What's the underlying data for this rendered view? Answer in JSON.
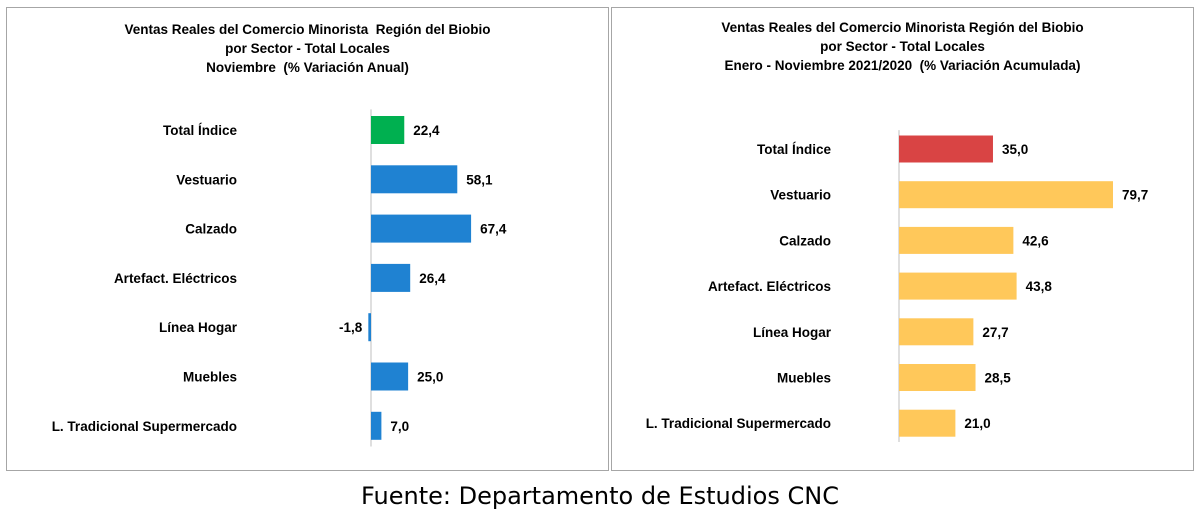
{
  "chart_data": [
    {
      "type": "bar",
      "orientation": "horizontal",
      "title_lines": [
        "Ventas Reales del Comercio Minorista  Región del Biobio",
        "por Sector - Total Locales",
        "Noviembre  (% Variación Anual)"
      ],
      "categories": [
        "Total Índice",
        "Vestuario",
        "Calzado",
        "Artefact. Eléctricos",
        "Línea Hogar",
        "Muebles",
        "L. Tradicional Supermercado"
      ],
      "value_labels": [
        "22,4",
        "58,1",
        "67,4",
        "26,4",
        "-1,8",
        "25,0",
        "7,0"
      ],
      "values": [
        22.4,
        58.1,
        67.4,
        26.4,
        -1.8,
        25.0,
        7.0
      ],
      "bar_colors": [
        "#00b050",
        "#1f82d2",
        "#1f82d2",
        "#1f82d2",
        "#1f82d2",
        "#1f82d2",
        "#1f82d2"
      ],
      "grid": false,
      "legend": "none"
    },
    {
      "type": "bar",
      "orientation": "horizontal",
      "title_lines": [
        "Ventas Reales del Comercio Minorista Región del Biobio",
        "por Sector - Total Locales",
        "Enero - Noviembre 2021/2020  (% Variación Acumulada)"
      ],
      "categories": [
        "Total Índice",
        "Vestuario",
        "Calzado",
        "Artefact. Eléctricos",
        "Línea Hogar",
        "Muebles",
        "L. Tradicional Supermercado"
      ],
      "value_labels": [
        "35,0",
        "79,7",
        "42,6",
        "43,8",
        "27,7",
        "28,5",
        "21,0"
      ],
      "values": [
        35.0,
        79.7,
        42.6,
        43.8,
        27.7,
        28.5,
        21.0
      ],
      "bar_colors": [
        "#d94444",
        "#ffc85a",
        "#ffc85a",
        "#ffc85a",
        "#ffc85a",
        "#ffc85a",
        "#ffc85a"
      ],
      "grid": false,
      "legend": "none"
    }
  ],
  "source_note": "Fuente: Departamento de Estudios CNC"
}
